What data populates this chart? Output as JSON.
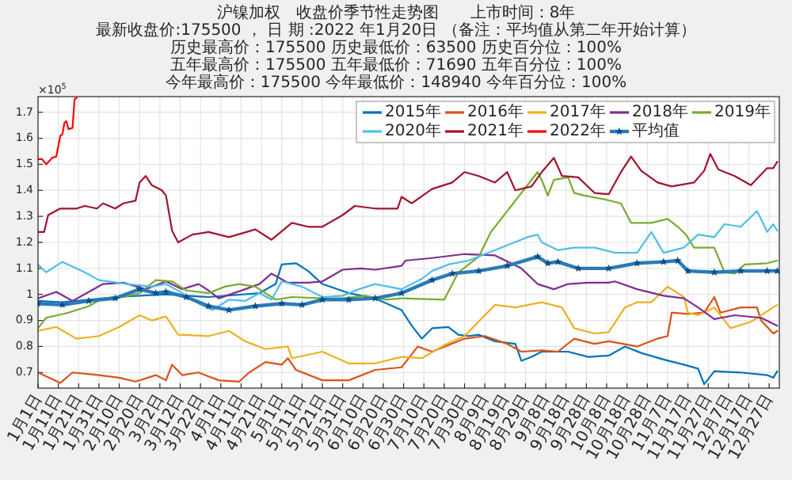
{
  "chart_data": {
    "type": "line",
    "title": "沪镍加权　收盘价季节性走势图　　上市时间：8年",
    "subtitle": "最新收盘价:175500 ， 日 期 :2022 年1月20日 （备注：平均值从第二年开始计算）",
    "annotations": [
      "历史最高价：175500 历史最低价：63500 历史百分位：100%",
      "五年最高价：175500 五年最低价：71690 五年百分位：100%",
      "今年最高价：175500 今年最低价：148940 今年百分位：100%",
      "×10$^{5}$"
    ],
    "xlim": [
      "--01-01",
      "--12-31"
    ],
    "ylim": [
      0.64,
      1.76
    ],
    "xticks": [
      {
        "value": "--01-01",
        "label": "1月1日"
      },
      {
        "value": "--01-11",
        "label": "1月11日"
      },
      {
        "value": "--01-21",
        "label": "1月21日"
      },
      {
        "value": "--01-31",
        "label": "1月31日"
      },
      {
        "value": "--02-10",
        "label": "2月10日"
      },
      {
        "value": "--02-20",
        "label": "2月20日"
      },
      {
        "value": "--03-02",
        "label": "3月2日"
      },
      {
        "value": "--03-12",
        "label": "3月12日"
      },
      {
        "value": "--03-22",
        "label": "3月22日"
      },
      {
        "value": "--04-01",
        "label": "4月1日"
      },
      {
        "value": "--04-11",
        "label": "4月11日"
      },
      {
        "value": "--04-21",
        "label": "4月21日"
      },
      {
        "value": "--05-01",
        "label": "5月1日"
      },
      {
        "value": "--05-11",
        "label": "5月11日"
      },
      {
        "value": "--05-21",
        "label": "5月21日"
      },
      {
        "value": "--05-31",
        "label": "5月31日"
      },
      {
        "value": "--06-10",
        "label": "6月10日"
      },
      {
        "value": "--06-20",
        "label": "6月20日"
      },
      {
        "value": "--06-30",
        "label": "6月30日"
      },
      {
        "value": "--07-10",
        "label": "7月10日"
      },
      {
        "value": "--07-20",
        "label": "7月20日"
      },
      {
        "value": "--07-30",
        "label": "7月30日"
      },
      {
        "value": "--08-09",
        "label": "8月9日"
      },
      {
        "value": "--08-19",
        "label": "8月19日"
      },
      {
        "value": "--08-29",
        "label": "8月29日"
      },
      {
        "value": "--09-08",
        "label": "9月8日"
      },
      {
        "value": "--09-18",
        "label": "9月18日"
      },
      {
        "value": "--09-28",
        "label": "9月28日"
      },
      {
        "value": "--10-08",
        "label": "10月8日"
      },
      {
        "value": "--10-18",
        "label": "10月18日"
      },
      {
        "value": "--10-28",
        "label": "10月28日"
      },
      {
        "value": "--11-07",
        "label": "11月7日"
      },
      {
        "value": "--11-17",
        "label": "11月17日"
      },
      {
        "value": "--11-27",
        "label": "11月27日"
      },
      {
        "value": "--12-07",
        "label": "12月7日"
      },
      {
        "value": "--12-17",
        "label": "12月17日"
      },
      {
        "value": "--12-27",
        "label": "12月27日"
      }
    ],
    "yticks": [
      0.7,
      0.8,
      0.9,
      1,
      1.1,
      1.2,
      1.3,
      1.4,
      1.5,
      1.6,
      1.7
    ],
    "grid": true,
    "legend": "top right",
    "marker": "none",
    "line_style": "solid",
    "series": [
      {
        "name": "2015年",
        "color": "#0072bd",
        "x": [
          "--01-01",
          "--01-13",
          "--01-26",
          "--02-08",
          "--03-05",
          "--03-26",
          "--04-20",
          "--04-28",
          "--05-01",
          "--05-08",
          "--05-14",
          "--05-21",
          "--06-03",
          "--06-16",
          "--06-29",
          "--07-04",
          "--07-09",
          "--07-14",
          "--07-22",
          "--07-27",
          "--08-01",
          "--08-06",
          "--08-14",
          "--08-24",
          "--08-27",
          "--09-01",
          "--09-06",
          "--09-19",
          "--09-29",
          "--10-09",
          "--10-17",
          "--10-25",
          "--11-05",
          "--11-15",
          "--11-22",
          "--11-25",
          "--11-30",
          "--12-13",
          "--12-26",
          "--12-29",
          "--12-31"
        ],
        "values": [
          0.975,
          0.97,
          0.98,
          0.99,
          1.0,
          0.99,
          1.005,
          1.04,
          1.115,
          1.12,
          1.09,
          1.04,
          1.005,
          0.985,
          0.94,
          0.88,
          0.83,
          0.87,
          0.875,
          0.845,
          0.84,
          0.845,
          0.82,
          0.81,
          0.745,
          0.76,
          0.78,
          0.78,
          0.76,
          0.765,
          0.8,
          0.775,
          0.75,
          0.73,
          0.715,
          0.655,
          0.705,
          0.7,
          0.69,
          0.68,
          0.705
        ]
      },
      {
        "name": "2016年",
        "color": "#d95319",
        "x": [
          "--01-01",
          "--01-12",
          "--01-18",
          "--01-31",
          "--02-10",
          "--02-18",
          "--02-28",
          "--03-05",
          "--03-08",
          "--03-13",
          "--03-21",
          "--03-31",
          "--04-10",
          "--04-15",
          "--04-23",
          "--05-01",
          "--05-04",
          "--05-08",
          "--05-21",
          "--06-03",
          "--06-16",
          "--06-29",
          "--07-07",
          "--07-14",
          "--07-30",
          "--08-09",
          "--08-20",
          "--08-27",
          "--09-06",
          "--09-14",
          "--09-22",
          "--10-02",
          "--10-09",
          "--10-23",
          "--11-02",
          "--11-07",
          "--11-09",
          "--11-17",
          "--11-25",
          "--11-30",
          "--12-03",
          "--12-13",
          "--12-21",
          "--12-23",
          "--12-29",
          "--12-31"
        ],
        "values": [
          0.7,
          0.66,
          0.7,
          0.69,
          0.68,
          0.665,
          0.69,
          0.67,
          0.73,
          0.69,
          0.7,
          0.67,
          0.665,
          0.7,
          0.74,
          0.73,
          0.755,
          0.71,
          0.67,
          0.67,
          0.71,
          0.72,
          0.8,
          0.78,
          0.83,
          0.84,
          0.81,
          0.78,
          0.785,
          0.78,
          0.83,
          0.81,
          0.82,
          0.8,
          0.83,
          0.84,
          0.93,
          0.925,
          0.93,
          0.99,
          0.93,
          0.95,
          0.95,
          0.9,
          0.85,
          0.86
        ]
      },
      {
        "name": "2017年",
        "color": "#edb120",
        "x": [
          "--01-01",
          "--01-10",
          "--01-20",
          "--01-31",
          "--02-10",
          "--02-20",
          "--02-26",
          "--03-05",
          "--03-11",
          "--03-26",
          "--04-05",
          "--04-13",
          "--04-23",
          "--05-04",
          "--05-06",
          "--05-21",
          "--06-03",
          "--06-16",
          "--06-29",
          "--07-09",
          "--07-20",
          "--07-30",
          "--08-14",
          "--08-24",
          "--09-06",
          "--09-16",
          "--09-22",
          "--10-02",
          "--10-09",
          "--10-17",
          "--10-23",
          "--10-30",
          "--11-07",
          "--11-15",
          "--11-17",
          "--11-22",
          "--11-30",
          "--12-08",
          "--12-18",
          "--12-29",
          "--12-31"
        ],
        "values": [
          0.86,
          0.875,
          0.83,
          0.84,
          0.875,
          0.92,
          0.9,
          0.915,
          0.845,
          0.84,
          0.86,
          0.82,
          0.79,
          0.8,
          0.755,
          0.78,
          0.735,
          0.735,
          0.76,
          0.755,
          0.805,
          0.84,
          0.96,
          0.95,
          0.97,
          0.95,
          0.87,
          0.85,
          0.855,
          0.95,
          0.97,
          0.97,
          1.03,
          0.99,
          0.93,
          0.92,
          0.95,
          0.87,
          0.895,
          0.95,
          0.96
        ]
      },
      {
        "name": "2018年",
        "color": "#7e2f8e",
        "x": [
          "--01-01",
          "--01-10",
          "--01-18",
          "--02-02",
          "--02-12",
          "--02-23",
          "--03-05",
          "--03-13",
          "--03-21",
          "--03-26",
          "--03-31",
          "--04-13",
          "--04-20",
          "--04-26",
          "--05-04",
          "--05-14",
          "--05-21",
          "--05-31",
          "--06-09",
          "--06-16",
          "--06-29",
          "--07-01",
          "--07-14",
          "--07-30",
          "--08-14",
          "--08-27",
          "--09-04",
          "--09-12",
          "--09-19",
          "--09-29",
          "--10-09",
          "--10-12",
          "--10-23",
          "--11-05",
          "--11-15",
          "--11-22",
          "--11-30",
          "--12-10",
          "--12-23",
          "--12-31"
        ],
        "values": [
          0.985,
          1.01,
          0.975,
          1.04,
          1.045,
          1.02,
          1.05,
          1.02,
          1.04,
          1.015,
          0.985,
          1.02,
          1.04,
          1.08,
          1.045,
          1.045,
          1.05,
          1.095,
          1.1,
          1.095,
          1.11,
          1.13,
          1.14,
          1.155,
          1.15,
          1.1,
          1.04,
          1.02,
          1.04,
          1.045,
          1.045,
          1.05,
          1.02,
          0.995,
          0.985,
          0.95,
          0.905,
          0.92,
          0.91,
          0.88
        ]
      },
      {
        "name": "2019年",
        "color": "#77ac30",
        "x": [
          "--01-01",
          "--01-05",
          "--01-16",
          "--01-26",
          "--02-02",
          "--02-12",
          "--02-20",
          "--02-28",
          "--03-08",
          "--03-15",
          "--03-26",
          "--04-03",
          "--04-10",
          "--04-18",
          "--04-28",
          "--05-06",
          "--05-21",
          "--05-31",
          "--06-11",
          "--06-21",
          "--06-29",
          "--07-20",
          "--07-27",
          "--08-06",
          "--08-12",
          "--09-04",
          "--09-06",
          "--09-09",
          "--09-12",
          "--09-19",
          "--09-22",
          "--09-27",
          "--10-07",
          "--10-15",
          "--10-20",
          "--10-30",
          "--11-07",
          "--11-12",
          "--11-16",
          "--11-20",
          "--11-30",
          "--12-05",
          "--12-10",
          "--12-15",
          "--12-26",
          "--12-31"
        ],
        "values": [
          0.87,
          0.91,
          0.93,
          0.955,
          0.985,
          0.99,
          1.005,
          1.055,
          1.05,
          1.015,
          1.005,
          1.03,
          1.04,
          1.03,
          0.98,
          0.99,
          0.985,
          0.985,
          0.995,
          0.98,
          0.985,
          0.98,
          1.085,
          1.145,
          1.24,
          1.47,
          1.44,
          1.38,
          1.44,
          1.45,
          1.39,
          1.38,
          1.365,
          1.35,
          1.275,
          1.275,
          1.29,
          1.26,
          1.23,
          1.18,
          1.18,
          1.085,
          1.08,
          1.115,
          1.12,
          1.13
        ]
      },
      {
        "name": "2020年",
        "color": "#4dbeee",
        "x": [
          "--01-01",
          "--01-05",
          "--01-13",
          "--01-24",
          "--01-31",
          "--02-14",
          "--02-26",
          "--03-05",
          "--03-13",
          "--03-21",
          "--03-28",
          "--04-05",
          "--04-13",
          "--04-20",
          "--04-26",
          "--05-01",
          "--05-11",
          "--05-21",
          "--05-31",
          "--06-08",
          "--06-16",
          "--06-29",
          "--07-09",
          "--07-14",
          "--07-22",
          "--08-01",
          "--08-30",
          "--09-04",
          "--09-06",
          "--09-14",
          "--09-22",
          "--10-02",
          "--10-12",
          "--10-23",
          "--10-30",
          "--11-05",
          "--11-15",
          "--11-22",
          "--11-30",
          "--12-05",
          "--12-13",
          "--12-21",
          "--12-23",
          "--12-26",
          "--12-29",
          "--12-31"
        ],
        "values": [
          1.115,
          1.085,
          1.125,
          1.085,
          1.055,
          1.04,
          1.03,
          1.04,
          1.005,
          0.965,
          0.94,
          0.98,
          0.975,
          1.005,
          0.98,
          1.05,
          1.03,
          0.99,
          0.995,
          1.02,
          1.04,
          1.02,
          1.06,
          1.09,
          1.115,
          1.13,
          1.22,
          1.23,
          1.2,
          1.17,
          1.18,
          1.18,
          1.16,
          1.16,
          1.24,
          1.16,
          1.18,
          1.23,
          1.22,
          1.27,
          1.26,
          1.32,
          1.29,
          1.24,
          1.27,
          1.245
        ]
      },
      {
        "name": "2021年",
        "color": "#a2142f",
        "x": [
          "--01-01",
          "--01-04",
          "--01-06",
          "--01-12",
          "--01-20",
          "--01-24",
          "--01-30",
          "--02-02",
          "--02-08",
          "--02-12",
          "--02-18",
          "--02-20",
          "--02-23",
          "--02-26",
          "--03-03",
          "--03-05",
          "--03-08",
          "--03-11",
          "--03-18",
          "--03-26",
          "--04-05",
          "--04-18",
          "--04-26",
          "--05-06",
          "--05-14",
          "--05-21",
          "--05-31",
          "--06-06",
          "--06-16",
          "--06-27",
          "--06-29",
          "--07-04",
          "--07-14",
          "--07-24",
          "--07-30",
          "--08-06",
          "--08-14",
          "--08-20",
          "--08-24",
          "--09-01",
          "--09-06",
          "--09-12",
          "--09-16",
          "--09-24",
          "--10-02",
          "--10-09",
          "--10-15",
          "--10-20",
          "--10-25",
          "--11-02",
          "--11-09",
          "--11-20",
          "--11-25",
          "--11-28",
          "--12-02",
          "--12-10",
          "--12-18",
          "--12-26",
          "--12-29",
          "--12-31"
        ],
        "values": [
          1.24,
          1.24,
          1.305,
          1.33,
          1.33,
          1.34,
          1.33,
          1.35,
          1.33,
          1.35,
          1.36,
          1.43,
          1.455,
          1.42,
          1.4,
          1.38,
          1.245,
          1.2,
          1.23,
          1.24,
          1.22,
          1.25,
          1.21,
          1.275,
          1.26,
          1.26,
          1.305,
          1.34,
          1.33,
          1.33,
          1.375,
          1.35,
          1.405,
          1.43,
          1.47,
          1.455,
          1.43,
          1.47,
          1.4,
          1.415,
          1.47,
          1.525,
          1.455,
          1.45,
          1.39,
          1.385,
          1.47,
          1.53,
          1.475,
          1.43,
          1.415,
          1.43,
          1.475,
          1.54,
          1.48,
          1.455,
          1.42,
          1.485,
          1.485,
          1.51
        ]
      },
      {
        "name": "2022年",
        "color": "#ff0000",
        "x": [
          "--01-01",
          "--01-03",
          "--01-05",
          "--01-08",
          "--01-10",
          "--01-12",
          "--01-13",
          "--01-14",
          "--01-15",
          "--01-16",
          "--01-18",
          "--01-19",
          "--01-20"
        ],
        "values": [
          1.52,
          1.52,
          1.5,
          1.525,
          1.53,
          1.61,
          1.615,
          1.66,
          1.665,
          1.635,
          1.64,
          1.75,
          1.755
        ]
      },
      {
        "name": "平均值",
        "color": "#2a7ab8",
        "marker": "star",
        "x": [
          "--01-01",
          "--01-13",
          "--01-26",
          "--02-08",
          "--02-20",
          "--02-28",
          "--03-05",
          "--03-15",
          "--03-26",
          "--04-05",
          "--04-18",
          "--05-01",
          "--05-11",
          "--05-21",
          "--06-03",
          "--06-16",
          "--06-29",
          "--07-14",
          "--07-24",
          "--08-06",
          "--08-20",
          "--09-04",
          "--09-09",
          "--09-14",
          "--09-24",
          "--10-09",
          "--10-23",
          "--11-05",
          "--11-12",
          "--11-17",
          "--11-30",
          "--12-13",
          "--12-26",
          "--12-31"
        ],
        "values": [
          0.965,
          0.96,
          0.975,
          0.985,
          1.02,
          1.005,
          1.01,
          0.99,
          0.955,
          0.94,
          0.955,
          0.965,
          0.96,
          0.98,
          0.98,
          0.985,
          1.005,
          1.055,
          1.08,
          1.09,
          1.11,
          1.145,
          1.12,
          1.125,
          1.1,
          1.1,
          1.12,
          1.125,
          1.13,
          1.09,
          1.085,
          1.09,
          1.09,
          1.09
        ]
      }
    ]
  }
}
